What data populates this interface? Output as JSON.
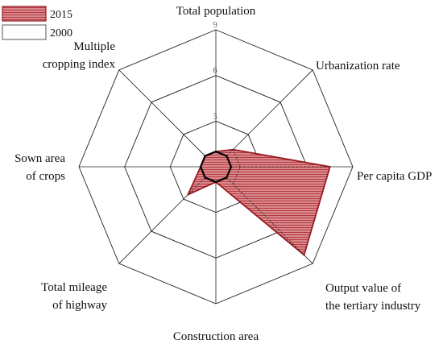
{
  "chart_data": {
    "type": "radar",
    "axes": [
      [
        "Total population"
      ],
      [
        "Urbanization rate"
      ],
      [
        "Per capita GDP"
      ],
      [
        "Output value of",
        "the tertiary industry"
      ],
      [
        "Construction area"
      ],
      [
        "Total mileage",
        "of highway"
      ],
      [
        "Sown area",
        "of crops"
      ],
      [
        "Multiple",
        "cropping index"
      ]
    ],
    "rticks": [
      "3",
      "6",
      "9"
    ],
    "rmax": 9,
    "series": [
      {
        "name": "2015",
        "values": [
          1,
          1.6,
          7.5,
          8.2,
          1,
          2.6,
          1,
          1
        ],
        "fill": "#d8868a",
        "stroke": "#9b1a22"
      },
      {
        "name": "2000",
        "values": [
          1,
          1,
          1,
          1,
          1,
          1,
          1,
          1
        ],
        "fill": "#ffffff",
        "stroke": "#000000"
      }
    ],
    "grid": true,
    "legend_position": "top-left"
  }
}
